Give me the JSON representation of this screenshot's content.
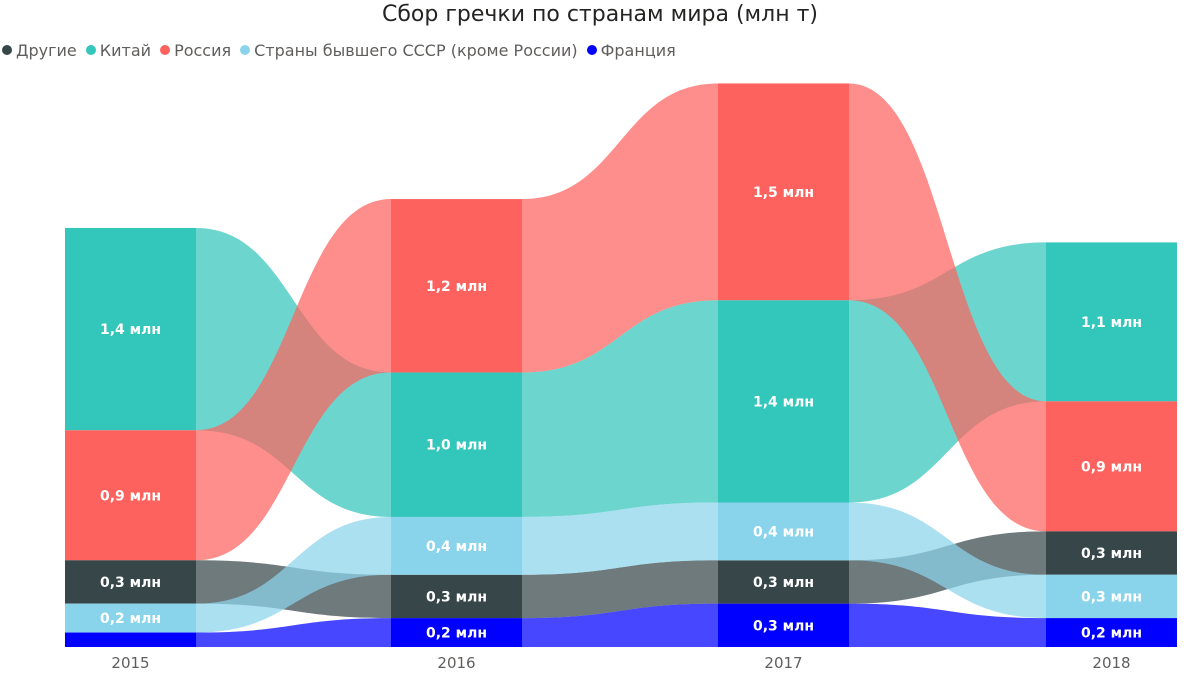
{
  "title": "Сбор гречки по странам мира (млн т)",
  "legend": [
    {
      "name": "Другие",
      "color": "#374649"
    },
    {
      "name": "Китай",
      "color": "#33c6bb"
    },
    {
      "name": "Россия",
      "color": "#fd625e"
    },
    {
      "name": "Страны бывшего СССР (кроме России)",
      "color": "#8ad4eb"
    },
    {
      "name": "Франция",
      "color": "#0000ff"
    }
  ],
  "chart_data": {
    "type": "ribbon",
    "categories": [
      "2015",
      "2016",
      "2017",
      "2018"
    ],
    "unit_label": "млн",
    "series": [
      {
        "name": "Китай",
        "color": "#33c6bb",
        "values": [
          1.4,
          1.0,
          1.4,
          1.1
        ]
      },
      {
        "name": "Россия",
        "color": "#fd625e",
        "values": [
          0.9,
          1.2,
          1.5,
          0.9
        ]
      },
      {
        "name": "Другие",
        "color": "#374649",
        "values": [
          0.3,
          0.3,
          0.3,
          0.3
        ]
      },
      {
        "name": "Страны бывшего СССР (кроме России)",
        "color": "#8ad4eb",
        "values": [
          0.2,
          0.4,
          0.4,
          0.3
        ]
      },
      {
        "name": "Франция",
        "color": "#0000ff",
        "values": [
          0.1,
          0.2,
          0.3,
          0.2
        ]
      }
    ],
    "data_labels": [
      [
        "1,4 млн",
        "1,0 млн",
        "1,4 млн",
        "1,1 млн"
      ],
      [
        "0,9 млн",
        "1,2 млн",
        "1,5 млн",
        "0,9 млн"
      ],
      [
        "0,3 млн",
        "0,3 млн",
        "0,3 млн",
        "0,3 млн"
      ],
      [
        "0,2 млн",
        "0,4 млн",
        "0,4 млн",
        "0,3 млн"
      ],
      [
        "",
        "0,2 млн",
        "0,3 млн",
        "0,2 млн"
      ]
    ],
    "stack_order": [
      [
        "Китай",
        "Россия",
        "Другие",
        "Страны бывшего СССР (кроме России)",
        "Франция"
      ],
      [
        "Россия",
        "Китай",
        "Страны бывшего СССР (кроме России)",
        "Другие",
        "Франция"
      ],
      [
        "Россия",
        "Китай",
        "Страны бывшего СССР (кроме России)",
        "Другие",
        "Франция"
      ],
      [
        "Китай",
        "Россия",
        "Другие",
        "Страны бывшего СССР (кроме России)",
        "Франция"
      ]
    ],
    "legend_position": "top-left",
    "grid": false
  }
}
